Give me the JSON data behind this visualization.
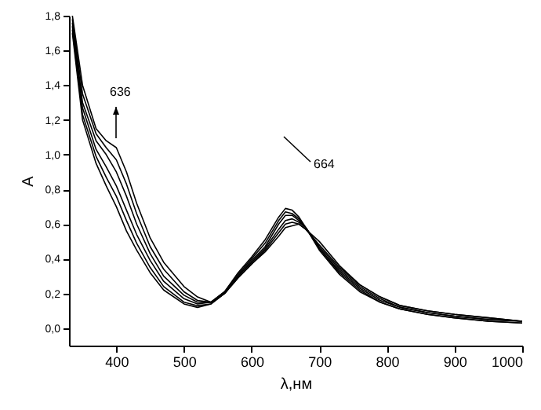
{
  "chart_data": {
    "type": "line",
    "xlabel": "λ,нм",
    "ylabel": "A",
    "xlim": [
      330,
      1000
    ],
    "xticks": [
      400,
      500,
      600,
      700,
      800,
      900,
      1000
    ],
    "ylim": [
      -0.1,
      1.8
    ],
    "yticks": [
      {
        "value": 0,
        "label": "0,0"
      },
      {
        "value": 0.2,
        "label": "0,2"
      },
      {
        "value": 0.4,
        "label": "0,4"
      },
      {
        "value": 0.6,
        "label": "0,6"
      },
      {
        "value": 0.8,
        "label": "0,8"
      },
      {
        "value": 1.0,
        "label": "1,0"
      },
      {
        "value": 1.2,
        "label": "1,2"
      },
      {
        "value": 1.4,
        "label": "1,4"
      },
      {
        "value": 1.6,
        "label": "1,6"
      },
      {
        "value": 1.8,
        "label": "1,8"
      }
    ],
    "annotations": [
      "636",
      "664"
    ],
    "x": [
      335,
      350,
      370,
      385,
      400,
      415,
      430,
      450,
      470,
      500,
      520,
      540,
      560,
      580,
      600,
      620,
      640,
      650,
      660,
      670,
      680,
      700,
      730,
      760,
      790,
      820,
      860,
      900,
      950,
      1000
    ],
    "series": [
      {
        "color": "#000000",
        "values": [
          1.8,
          1.4,
          1.15,
          1.08,
          1.04,
          0.9,
          0.72,
          0.52,
          0.38,
          0.24,
          0.18,
          0.15,
          0.21,
          0.32,
          0.41,
          0.51,
          0.64,
          0.69,
          0.68,
          0.64,
          0.58,
          0.45,
          0.31,
          0.21,
          0.15,
          0.11,
          0.08,
          0.06,
          0.04,
          0.03
        ]
      },
      {
        "color": "#000000",
        "values": [
          1.78,
          1.35,
          1.12,
          1.04,
          0.97,
          0.83,
          0.66,
          0.47,
          0.34,
          0.21,
          0.16,
          0.15,
          0.21,
          0.31,
          0.4,
          0.49,
          0.62,
          0.67,
          0.66,
          0.63,
          0.58,
          0.46,
          0.32,
          0.22,
          0.15,
          0.11,
          0.08,
          0.06,
          0.04,
          0.03
        ]
      },
      {
        "color": "#000000",
        "values": [
          1.76,
          1.3,
          1.08,
          1.0,
          0.9,
          0.76,
          0.6,
          0.43,
          0.3,
          0.19,
          0.15,
          0.15,
          0.2,
          0.3,
          0.39,
          0.47,
          0.6,
          0.65,
          0.65,
          0.62,
          0.58,
          0.46,
          0.33,
          0.23,
          0.16,
          0.12,
          0.09,
          0.07,
          0.05,
          0.04
        ]
      },
      {
        "color": "#000000",
        "values": [
          1.74,
          1.27,
          1.03,
          0.93,
          0.82,
          0.68,
          0.54,
          0.39,
          0.27,
          0.17,
          0.14,
          0.15,
          0.2,
          0.3,
          0.38,
          0.46,
          0.57,
          0.62,
          0.63,
          0.61,
          0.58,
          0.47,
          0.34,
          0.24,
          0.17,
          0.12,
          0.09,
          0.07,
          0.05,
          0.04
        ]
      },
      {
        "color": "#000000",
        "values": [
          1.72,
          1.23,
          0.99,
          0.87,
          0.76,
          0.62,
          0.49,
          0.35,
          0.24,
          0.15,
          0.13,
          0.14,
          0.2,
          0.29,
          0.37,
          0.45,
          0.55,
          0.6,
          0.61,
          0.6,
          0.57,
          0.48,
          0.35,
          0.25,
          0.18,
          0.13,
          0.1,
          0.08,
          0.06,
          0.04
        ]
      },
      {
        "color": "#000000",
        "values": [
          1.7,
          1.2,
          0.95,
          0.82,
          0.7,
          0.56,
          0.45,
          0.32,
          0.22,
          0.14,
          0.12,
          0.14,
          0.2,
          0.29,
          0.37,
          0.44,
          0.53,
          0.58,
          0.59,
          0.6,
          0.57,
          0.5,
          0.36,
          0.25,
          0.18,
          0.13,
          0.1,
          0.08,
          0.06,
          0.04
        ]
      }
    ]
  }
}
